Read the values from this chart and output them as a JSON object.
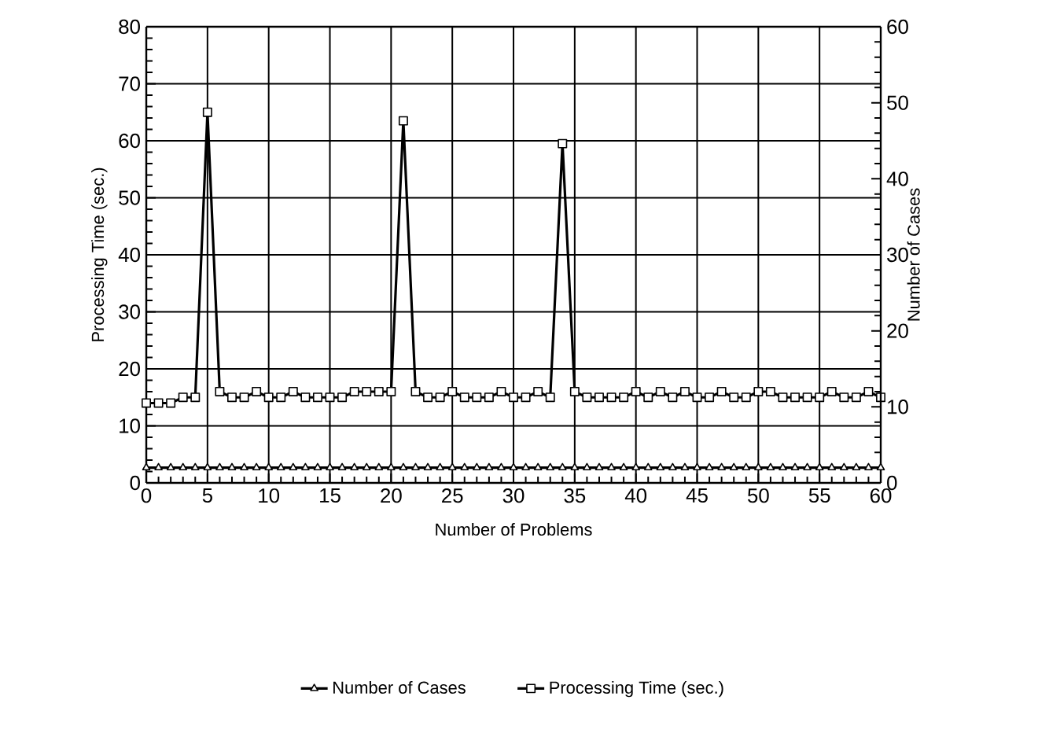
{
  "chart_data": {
    "type": "line",
    "xlabel": "Number of Problems",
    "ylabel": "Processing Time (sec.)",
    "y2label": "Number of Cases",
    "x": [
      0,
      1,
      2,
      3,
      4,
      5,
      6,
      7,
      8,
      9,
      10,
      11,
      12,
      13,
      14,
      15,
      16,
      17,
      18,
      19,
      20,
      21,
      22,
      23,
      24,
      25,
      26,
      27,
      28,
      29,
      30,
      31,
      32,
      33,
      34,
      35,
      36,
      37,
      38,
      39,
      40,
      41,
      42,
      43,
      44,
      45,
      46,
      47,
      48,
      49,
      50,
      51,
      52,
      53,
      54,
      55,
      56,
      57,
      58,
      59,
      60
    ],
    "series": [
      {
        "name": "Number of Cases",
        "color": "#000000",
        "axis": "y2",
        "marker": "triangle",
        "values": [
          2,
          2,
          2,
          2,
          2,
          2,
          2,
          2,
          2,
          2,
          2,
          2,
          2,
          2,
          2,
          2,
          2,
          2,
          2,
          2,
          2,
          2,
          2,
          2,
          2,
          2,
          2,
          2,
          2,
          2,
          2,
          2,
          2,
          2,
          2,
          2,
          2,
          2,
          2,
          2,
          2,
          2,
          2,
          2,
          2,
          2,
          2,
          2,
          2,
          2,
          2,
          2,
          2,
          2,
          2,
          2,
          2,
          2,
          2,
          2,
          2
        ]
      },
      {
        "name": "Processing Time (sec.)",
        "color": "#000000",
        "marker": "square",
        "values": [
          14,
          14,
          14,
          15,
          15,
          65,
          16,
          15,
          15,
          16,
          15,
          15,
          16,
          15,
          15,
          15,
          15,
          16,
          16,
          16,
          16,
          63.5,
          16,
          15,
          15,
          16,
          15,
          15,
          15,
          16,
          15,
          15,
          16,
          15,
          59.5,
          16,
          15,
          15,
          15,
          15,
          16,
          15,
          16,
          15,
          16,
          15,
          15,
          16,
          15,
          15,
          16,
          16,
          15,
          15,
          15,
          15,
          16,
          15,
          15,
          16,
          15
        ]
      }
    ],
    "xlim": [
      0,
      60
    ],
    "xticks": [
      0,
      5,
      10,
      15,
      20,
      25,
      30,
      35,
      40,
      45,
      50,
      55,
      60
    ],
    "ylim": [
      0,
      80
    ],
    "yticks": [
      0,
      10,
      20,
      30,
      40,
      50,
      60,
      70,
      80
    ],
    "y2lim": [
      0,
      60
    ],
    "y2ticks": [
      0,
      10,
      20,
      30,
      40,
      50,
      60
    ],
    "grid": true,
    "legend": "bottom",
    "line_style": "solid"
  }
}
